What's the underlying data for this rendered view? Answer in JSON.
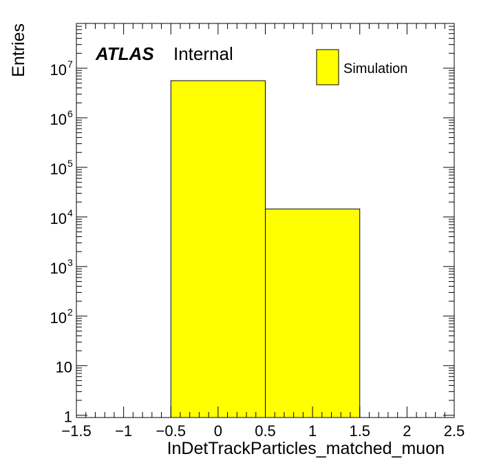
{
  "chart_data": {
    "type": "bar",
    "title": "",
    "xlabel": "InDetTrackParticles_matched_muon",
    "ylabel": "Entries",
    "xlim": [
      -1.5,
      2.5
    ],
    "ylim": [
      0.9,
      80000000
    ],
    "yscale": "log",
    "grid": false,
    "legend_position": "top-right",
    "x_ticks": [
      "−1.5",
      "−1",
      "−0.5",
      "0",
      "0.5",
      "1",
      "1.5",
      "2",
      "2.5"
    ],
    "x_tick_values": [
      -1.5,
      -1,
      -0.5,
      0,
      0.5,
      1,
      1.5,
      2,
      2.5
    ],
    "y_ticks": [
      {
        "value": 1,
        "base": "1",
        "exp": ""
      },
      {
        "value": 10,
        "base": "10",
        "exp": ""
      },
      {
        "value": 100,
        "base": "10",
        "exp": "2"
      },
      {
        "value": 1000,
        "base": "10",
        "exp": "3"
      },
      {
        "value": 10000,
        "base": "10",
        "exp": "4"
      },
      {
        "value": 100000,
        "base": "10",
        "exp": "5"
      },
      {
        "value": 1000000,
        "base": "10",
        "exp": "6"
      },
      {
        "value": 10000000,
        "base": "10",
        "exp": "7"
      }
    ],
    "series": [
      {
        "name": "Simulation",
        "color": "#ffff00",
        "bins": [
          {
            "x0": -0.5,
            "x1": 0.5,
            "value": 5600000
          },
          {
            "x0": 0.5,
            "x1": 1.5,
            "value": 14500
          }
        ]
      }
    ],
    "annotations": {
      "experiment": "ATLAS",
      "status": "Internal"
    }
  }
}
